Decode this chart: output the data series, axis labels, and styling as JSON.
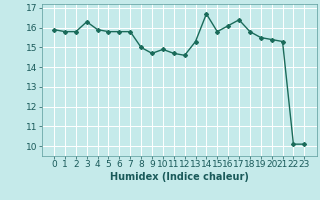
{
  "x": [
    0,
    1,
    2,
    3,
    4,
    5,
    6,
    7,
    8,
    9,
    10,
    11,
    12,
    13,
    14,
    15,
    16,
    17,
    18,
    19,
    20,
    21,
    22,
    23
  ],
  "y": [
    15.9,
    15.8,
    15.8,
    16.3,
    15.9,
    15.8,
    15.8,
    15.8,
    15.0,
    14.7,
    14.9,
    14.7,
    14.6,
    15.3,
    16.7,
    15.8,
    16.1,
    16.4,
    15.8,
    15.5,
    15.4,
    15.3,
    10.1,
    10.1
  ],
  "line_color": "#1a6b5a",
  "marker": "D",
  "marker_size": 2.0,
  "bg_color": "#c5eaea",
  "grid_color": "#ffffff",
  "xlabel": "Humidex (Indice chaleur)",
  "xlabel_fontsize": 7,
  "tick_fontsize": 6.5,
  "ylim": [
    9.5,
    17.2
  ],
  "yticks": [
    10,
    11,
    12,
    13,
    14,
    15,
    16,
    17
  ],
  "xticks": [
    0,
    1,
    2,
    3,
    4,
    5,
    6,
    7,
    8,
    9,
    10,
    11,
    12,
    13,
    14,
    15,
    16,
    17,
    18,
    19,
    20,
    21,
    22,
    23
  ],
  "line_width": 1.0
}
